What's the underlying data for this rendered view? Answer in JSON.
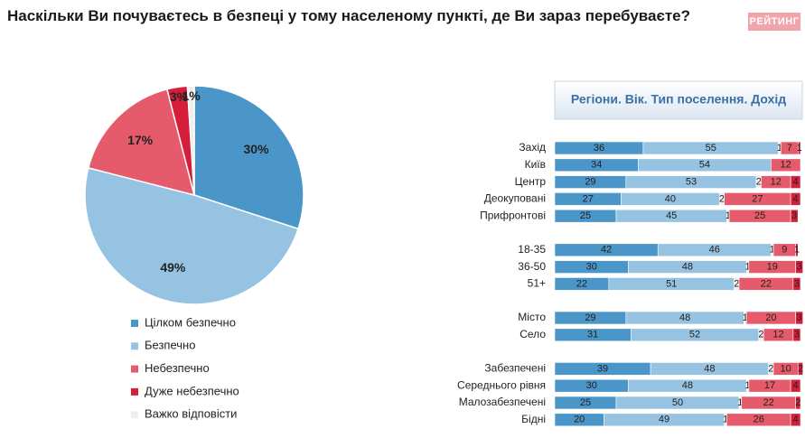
{
  "title": "Наскільки Ви почуваєтесь в безпеці у тому населеному пункті, де Ви зараз перебуваєте?",
  "logo": "РЕЙТИНГ",
  "chart_data": [
    {
      "type": "pie",
      "categories": [
        "Цілком безпечно",
        "Безпечно",
        "Небезпечно",
        "Дуже небезпечно",
        "Важко відповісти"
      ],
      "values": [
        30,
        49,
        17,
        3,
        1
      ],
      "value_labels": [
        "30%",
        "49%",
        "17%",
        "3%",
        "1%"
      ],
      "colors": [
        "#4a96c8",
        "#95c3e1",
        "#e55b6b",
        "#d51f3a",
        "#eeeeee"
      ]
    },
    {
      "type": "stacked_barh",
      "subtitle": "Регіони. Вік. Тип поселення. Дохід",
      "xlim": [
        0,
        100
      ],
      "categories": [
        "Захід",
        "Київ",
        "Центр",
        "Деокуповані",
        "Прифронтові",
        null,
        "18-35",
        "36-50",
        "51+",
        null,
        "Місто",
        "Село",
        null,
        "Забезпечені",
        "Середнього рівня",
        "Малозабезпечені",
        "Бідні"
      ],
      "series": [
        {
          "color": "#4a96c8",
          "values": [
            36,
            34,
            29,
            27,
            25,
            null,
            42,
            30,
            22,
            null,
            29,
            31,
            null,
            39,
            30,
            25,
            20
          ]
        },
        {
          "color": "#95c3e1",
          "values": [
            55,
            54,
            53,
            40,
            45,
            null,
            46,
            48,
            51,
            null,
            48,
            52,
            null,
            48,
            48,
            50,
            49
          ]
        },
        {
          "color": "#eeeeee",
          "values": [
            1,
            null,
            2,
            2,
            1,
            null,
            1,
            1,
            2,
            null,
            1,
            2,
            null,
            2,
            1,
            1,
            1
          ]
        },
        {
          "color": "#e55b6b",
          "values": [
            7,
            12,
            12,
            27,
            25,
            null,
            9,
            19,
            22,
            null,
            20,
            12,
            null,
            10,
            17,
            22,
            26
          ]
        },
        {
          "color": "#d51f3a",
          "values": [
            1,
            null,
            4,
            4,
            3,
            null,
            1,
            3,
            3,
            null,
            3,
            3,
            null,
            2,
            4,
            2,
            4
          ]
        }
      ]
    }
  ]
}
